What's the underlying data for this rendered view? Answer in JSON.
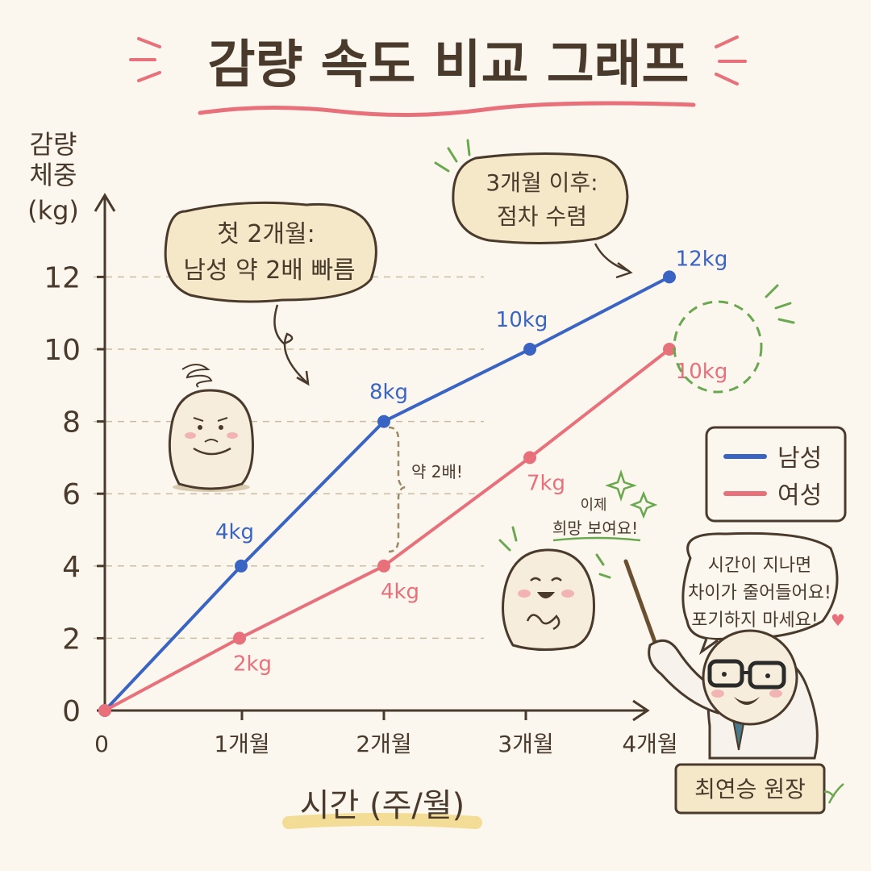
{
  "title": "감량 속도 비교 그래프",
  "chart_data": {
    "type": "line",
    "categories": [
      "0",
      "1개월",
      "2개월",
      "3개월",
      "4개월"
    ],
    "xlabel": "시간 (주/월)",
    "ylabel": [
      "감량",
      "체중",
      "(kg)"
    ],
    "ylim": [
      0,
      12
    ],
    "yticks": [
      "0",
      "2",
      "4",
      "6",
      "8",
      "10",
      "12"
    ],
    "grid": "horizontal dashed",
    "legend_position": "right",
    "series": [
      {
        "name": "남성",
        "color": "#3a64c4",
        "x": [
          0,
          1,
          2,
          3,
          4
        ],
        "values": [
          0,
          4,
          8,
          10,
          12
        ],
        "labels": [
          "4kg",
          "8kg",
          "10kg",
          "12kg"
        ]
      },
      {
        "name": "여성",
        "color": "#e8707a",
        "x": [
          0,
          1,
          2,
          3,
          4
        ],
        "values": [
          0,
          2,
          4,
          7,
          10
        ],
        "labels": [
          "2kg",
          "4kg",
          "7kg",
          "10kg"
        ]
      }
    ],
    "annotations": {
      "bubble1": [
        "첫 2개월:",
        "남성 약 2배 빠름"
      ],
      "bubble2": [
        "3개월 이후:",
        "점차 수렴"
      ],
      "gap": "약 2배!",
      "hope": [
        "이제",
        "희망 보여요!"
      ],
      "doctor_speech": [
        "시간이 지나면",
        "차이가 줄어들어요!",
        "포기하지 마세요!"
      ],
      "name_tag": "최연승 원장"
    }
  },
  "colors": {
    "background": "#fbf7ee",
    "ink": "#4a3a2c",
    "male": "#3a64c4",
    "female": "#e8707a",
    "bubble": "#f4e8c8",
    "accent_green": "#6aa84f"
  }
}
